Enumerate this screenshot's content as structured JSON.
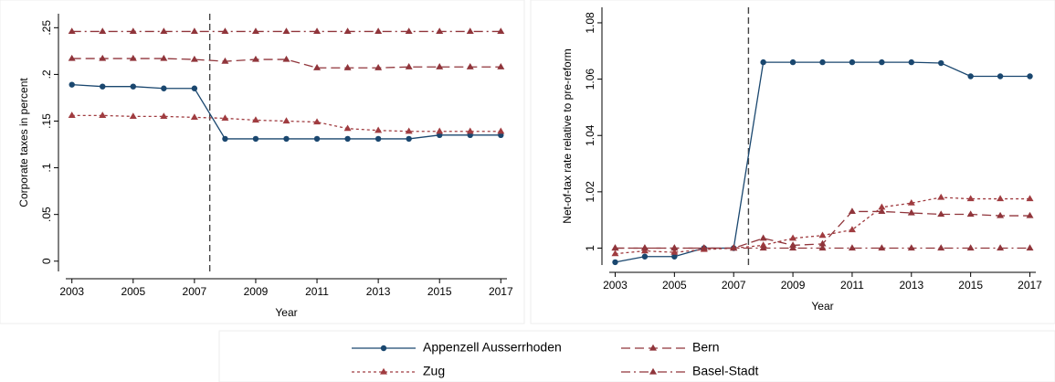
{
  "chart_data": [
    {
      "type": "line",
      "ylabel": "Corporate taxes in percent",
      "xlabel": "Year",
      "x": [
        2003,
        2004,
        2005,
        2006,
        2007,
        2008,
        2009,
        2010,
        2011,
        2012,
        2013,
        2014,
        2015,
        2016,
        2017
      ],
      "xlim": [
        2002.8,
        2017.2
      ],
      "xticks": [
        2003,
        2005,
        2007,
        2009,
        2011,
        2013,
        2015,
        2017
      ],
      "ylim": [
        -0.011,
        0.265
      ],
      "yticks": [
        0,
        {
          "value": 0.05,
          "label": ".05"
        },
        {
          "value": 0.1,
          "label": ".1"
        },
        {
          "value": 0.15,
          "label": ".15"
        },
        {
          "value": 0.2,
          "label": ".2"
        },
        {
          "value": 0.25,
          "label": ".25"
        }
      ],
      "vline": 2007.5,
      "series": [
        {
          "name": "Appenzell Ausserrhoden",
          "color": "#1a476f",
          "dash": "none",
          "marker": "circle",
          "values": [
            0.189,
            0.187,
            0.187,
            0.185,
            0.185,
            0.131,
            0.131,
            0.131,
            0.131,
            0.131,
            0.131,
            0.131,
            0.135,
            0.135,
            0.135
          ]
        },
        {
          "name": "Bern",
          "color": "#90353b",
          "dash": "10,5",
          "marker": "triangle",
          "values": [
            0.217,
            0.217,
            0.217,
            0.217,
            0.216,
            0.214,
            0.216,
            0.216,
            0.207,
            0.207,
            0.207,
            0.208,
            0.208,
            0.208,
            0.208
          ]
        },
        {
          "name": "Zug",
          "color": "#a03c40",
          "dash": "3,3",
          "marker": "triangle",
          "values": [
            0.156,
            0.156,
            0.155,
            0.155,
            0.154,
            0.153,
            0.151,
            0.15,
            0.149,
            0.142,
            0.14,
            0.139,
            0.139,
            0.139,
            0.139
          ]
        },
        {
          "name": "Basel-Stadt",
          "color": "#90353b",
          "dash": "10,4,2,4",
          "marker": "triangle",
          "values": [
            0.246,
            0.246,
            0.246,
            0.246,
            0.246,
            0.246,
            0.246,
            0.246,
            0.246,
            0.246,
            0.246,
            0.246,
            0.246,
            0.246,
            0.246
          ]
        }
      ]
    },
    {
      "type": "line",
      "ylabel": "Net-of-tax rate relative to pre-reform",
      "xlabel": "Year",
      "x": [
        2003,
        2004,
        2005,
        2006,
        2007,
        2008,
        2009,
        2010,
        2011,
        2012,
        2013,
        2014,
        2015,
        2016,
        2017
      ],
      "xlim": [
        2002.8,
        2017.2
      ],
      "xticks": [
        2003,
        2005,
        2007,
        2009,
        2011,
        2013,
        2015,
        2017
      ],
      "ylim": [
        0.994,
        1.0855
      ],
      "yticks": [
        1,
        1.02,
        1.04,
        1.06,
        1.08
      ],
      "vline": 2007.5,
      "series": [
        {
          "name": "Appenzell Ausserrhoden",
          "color": "#1a476f",
          "dash": "none",
          "marker": "circle",
          "values": [
            0.995,
            0.997,
            0.997,
            1.0,
            1.0,
            1.066,
            1.066,
            1.066,
            1.066,
            1.066,
            1.066,
            1.0657,
            1.061,
            1.061,
            1.061
          ]
        },
        {
          "name": "Bern",
          "color": "#90353b",
          "dash": "10,5",
          "marker": "triangle",
          "values": [
            1.0,
            1.0,
            1.0,
            1.0,
            1.0,
            1.0035,
            1.001,
            1.0015,
            1.013,
            1.013,
            1.0125,
            1.012,
            1.012,
            1.0115,
            1.0115
          ]
        },
        {
          "name": "Zug",
          "color": "#a03c40",
          "dash": "3,3",
          "marker": "triangle",
          "values": [
            0.998,
            0.999,
            0.9985,
            0.9995,
            1.0,
            1.001,
            1.0035,
            1.0045,
            1.0065,
            1.0145,
            1.016,
            1.018,
            1.0175,
            1.0175,
            1.0175
          ]
        },
        {
          "name": "Basel-Stadt",
          "color": "#90353b",
          "dash": "10,4,2,4",
          "marker": "triangle",
          "values": [
            1.0,
            1.0,
            1.0,
            1.0,
            1.0,
            1.0,
            1.0,
            1.0,
            1.0,
            1.0,
            1.0,
            1.0,
            1.0,
            1.0,
            1.0
          ]
        }
      ]
    }
  ]
}
